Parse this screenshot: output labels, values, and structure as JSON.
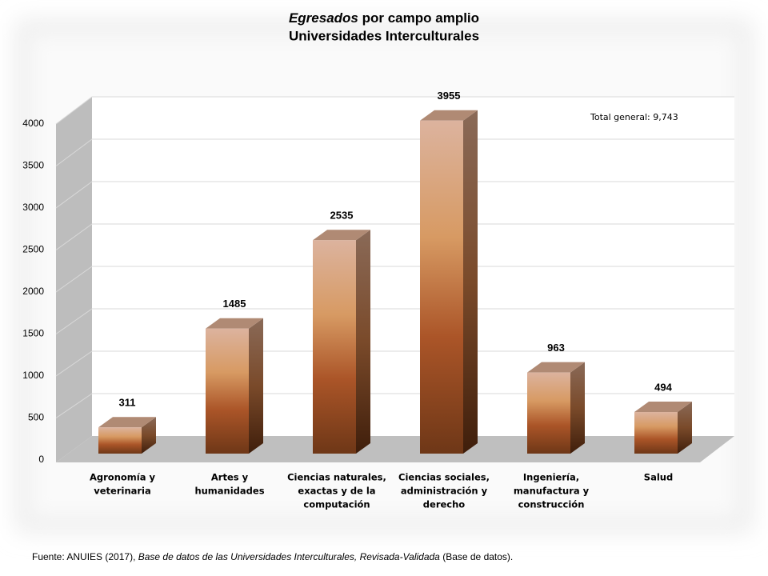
{
  "chart_data": {
    "type": "bar",
    "title": [
      "Egresados",
      "por campo amplio"
    ],
    "subtitle": "Universidades Interculturales",
    "annotation": "Total general: 9,743",
    "source": [
      "Fuente: ANUIES (2017),",
      "Base de datos de las Universidades Interculturales, Revisada-Validada",
      "(Base de datos)."
    ],
    "categories": [
      [
        "Agronomía y",
        "veterinaria"
      ],
      [
        "Artes y",
        "humanidades"
      ],
      [
        "Ciencias naturales,",
        "exactas y de la",
        "computación"
      ],
      [
        "Ciencias sociales,",
        "administración y",
        "derecho"
      ],
      [
        "Ingeniería,",
        "manufactura y",
        "construcción"
      ],
      [
        "Salud"
      ]
    ],
    "values": [
      311,
      1485,
      2535,
      3955,
      963,
      494
    ],
    "color": "#c0703c",
    "ylim": [
      0,
      4000
    ],
    "yticks": [
      0,
      500,
      1000,
      1500,
      2000,
      2500,
      3000,
      3500,
      4000
    ],
    "grid": true
  }
}
